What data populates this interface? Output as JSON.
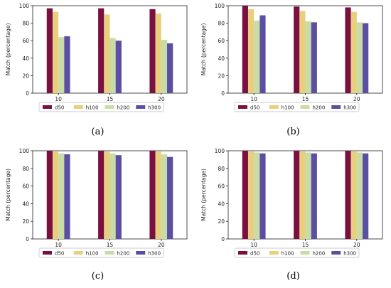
{
  "colors": {
    "d50": "#7a1040",
    "h100": "#e8cf7e",
    "h200": "#c9dca6",
    "h300": "#5b4fa3"
  },
  "chart_data": [
    {
      "caption": "(a)",
      "type": "bar",
      "categories": [
        "10",
        "15",
        "20"
      ],
      "ylabel": "Match (percentage)",
      "xlabel": "",
      "ylim": [
        0,
        100
      ],
      "yticks": [
        0,
        20,
        40,
        60,
        80,
        100
      ],
      "legend": "bottom",
      "series": [
        {
          "name": "d50",
          "values": [
            97,
            97,
            96
          ]
        },
        {
          "name": "h100",
          "values": [
            93,
            90,
            91
          ]
        },
        {
          "name": "h200",
          "values": [
            64,
            63,
            61
          ]
        },
        {
          "name": "h300",
          "values": [
            65,
            60,
            57
          ]
        }
      ]
    },
    {
      "caption": "(b)",
      "type": "bar",
      "categories": [
        "10",
        "15",
        "20"
      ],
      "ylabel": "Match (percentage)",
      "xlabel": "",
      "ylim": [
        0,
        100
      ],
      "yticks": [
        0,
        20,
        40,
        60,
        80,
        100
      ],
      "legend": "bottom",
      "series": [
        {
          "name": "d50",
          "values": [
            100,
            99,
            98
          ]
        },
        {
          "name": "h100",
          "values": [
            96,
            94,
            93
          ]
        },
        {
          "name": "h200",
          "values": [
            83,
            82,
            81
          ]
        },
        {
          "name": "h300",
          "values": [
            89,
            81,
            80
          ]
        }
      ]
    },
    {
      "caption": "(c)",
      "type": "bar",
      "categories": [
        "10",
        "15",
        "20"
      ],
      "ylabel": "Match (percentage)",
      "xlabel": "",
      "ylim": [
        0,
        100
      ],
      "yticks": [
        0,
        20,
        40,
        60,
        80,
        100
      ],
      "legend": "bottom",
      "series": [
        {
          "name": "d50",
          "values": [
            100,
            100,
            100
          ]
        },
        {
          "name": "h100",
          "values": [
            99,
            99,
            99
          ]
        },
        {
          "name": "h200",
          "values": [
            97,
            97,
            96
          ]
        },
        {
          "name": "h300",
          "values": [
            96,
            95,
            93
          ]
        }
      ]
    },
    {
      "caption": "(d)",
      "type": "bar",
      "categories": [
        "10",
        "15",
        "20"
      ],
      "ylabel": "Match (percentage)",
      "xlabel": "",
      "ylim": [
        0,
        100
      ],
      "yticks": [
        0,
        20,
        40,
        60,
        80,
        100
      ],
      "legend": "bottom",
      "series": [
        {
          "name": "d50",
          "values": [
            100,
            100,
            100
          ]
        },
        {
          "name": "h100",
          "values": [
            99,
            99,
            99
          ]
        },
        {
          "name": "h200",
          "values": [
            98,
            98,
            98
          ]
        },
        {
          "name": "h300",
          "values": [
            97,
            97,
            97
          ]
        }
      ]
    }
  ]
}
